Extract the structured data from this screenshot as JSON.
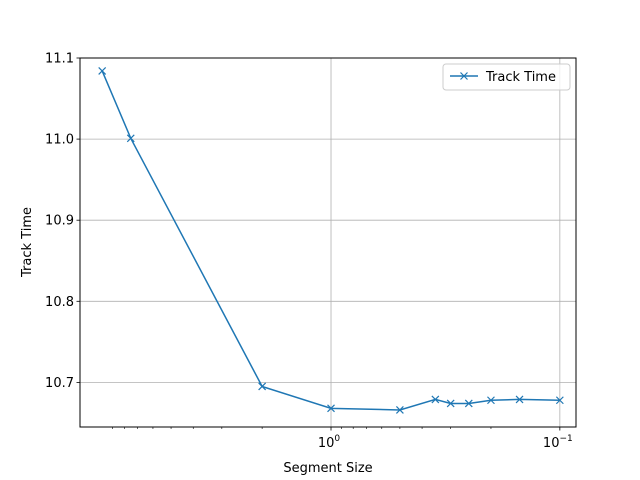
{
  "chart_data": {
    "type": "line",
    "xlabel": "Segment Size",
    "ylabel": "Track Time",
    "x_scale": "log",
    "x_axis_inverted": true,
    "x_ticks": [
      {
        "value": 1,
        "label_base": "10",
        "label_exp": "0"
      },
      {
        "value": 0.1,
        "label_base": "10",
        "label_exp": "−1"
      }
    ],
    "y_ticks": [
      {
        "value": 10.7,
        "label": "10.7"
      },
      {
        "value": 10.8,
        "label": "10.8"
      },
      {
        "value": 10.9,
        "label": "10.9"
      },
      {
        "value": 11.0,
        "label": "11.0"
      },
      {
        "value": 11.1,
        "label": "11.1"
      }
    ],
    "ylim": [
      10.645,
      11.1
    ],
    "xlim": [
      12.5,
      0.085
    ],
    "grid": true,
    "legend": {
      "placement": "top-right"
    },
    "series": [
      {
        "name": "Track Time",
        "color": "#1f77b4",
        "marker": "x",
        "x": [
          10,
          7.5,
          2,
          1,
          0.5,
          0.35,
          0.3,
          0.25,
          0.2,
          0.15,
          0.1
        ],
        "y": [
          11.084,
          11.001,
          10.695,
          10.668,
          10.666,
          10.679,
          10.674,
          10.674,
          10.678,
          10.679,
          10.678
        ]
      }
    ]
  }
}
